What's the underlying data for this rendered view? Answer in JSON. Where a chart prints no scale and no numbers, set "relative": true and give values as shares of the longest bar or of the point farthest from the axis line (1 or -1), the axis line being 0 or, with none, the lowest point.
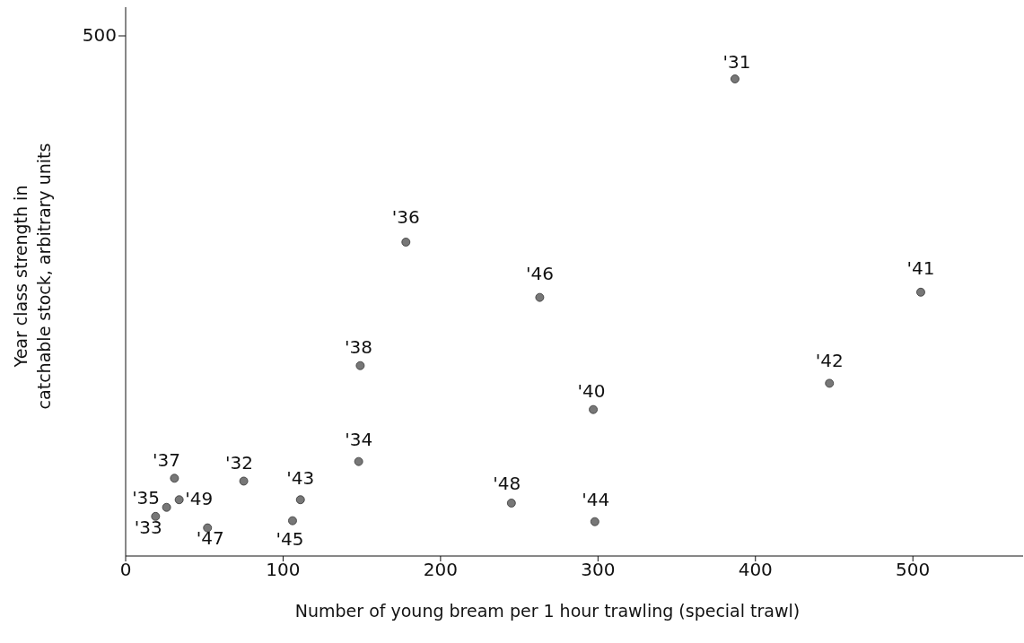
{
  "chart_data": {
    "type": "scatter",
    "xlabel": "Number of young bream per 1 hour trawling (special trawl)",
    "ylabel": "Year class strength in catchable stock, arbitrary units",
    "relative": true,
    "x": [
      387,
      178,
      505,
      263,
      149,
      297,
      447,
      148,
      75,
      31,
      34,
      111,
      245,
      26,
      19,
      52,
      106,
      298
    ],
    "values": [
      1,
      0.658,
      0.553,
      0.542,
      0.399,
      0.307,
      0.362,
      0.198,
      0.157,
      0.163,
      0.118,
      0.118,
      0.111,
      0.102,
      0.083,
      0.059,
      0.074,
      0.072
    ],
    "color": "#777777",
    "marker": "circle",
    "xlim": [
      0,
      570
    ],
    "xticks": [
      0,
      100,
      200,
      300,
      400,
      500
    ],
    "annotations": [
      "500",
      {
        "text": "'31",
        "x": 387,
        "y": 1
      },
      {
        "text": "'36",
        "x": 178,
        "y": 0.658
      },
      {
        "text": "'41",
        "x": 505,
        "y": 0.553
      },
      {
        "text": "'46",
        "x": 263,
        "y": 0.542
      },
      {
        "text": "'38",
        "x": 149,
        "y": 0.399
      },
      {
        "text": "'40",
        "x": 297,
        "y": 0.307
      },
      {
        "text": "'42",
        "x": 447,
        "y": 0.362
      },
      {
        "text": "'34",
        "x": 148,
        "y": 0.198
      },
      {
        "text": "'32",
        "x": 75,
        "y": 0.157
      },
      {
        "text": "'37",
        "x": 31,
        "y": 0.163
      },
      {
        "text": "'49",
        "x": 34,
        "y": 0.118
      },
      {
        "text": "'43",
        "x": 111,
        "y": 0.118
      },
      {
        "text": "'48",
        "x": 245,
        "y": 0.111
      },
      {
        "text": "'35",
        "x": 26,
        "y": 0.102
      },
      {
        "text": "'33",
        "x": 19,
        "y": 0.083
      },
      {
        "text": "'47",
        "x": 52,
        "y": 0.059
      },
      {
        "text": "'45",
        "x": 106,
        "y": 0.074
      },
      {
        "text": "'44",
        "x": 298,
        "y": 0.072
      }
    ]
  }
}
